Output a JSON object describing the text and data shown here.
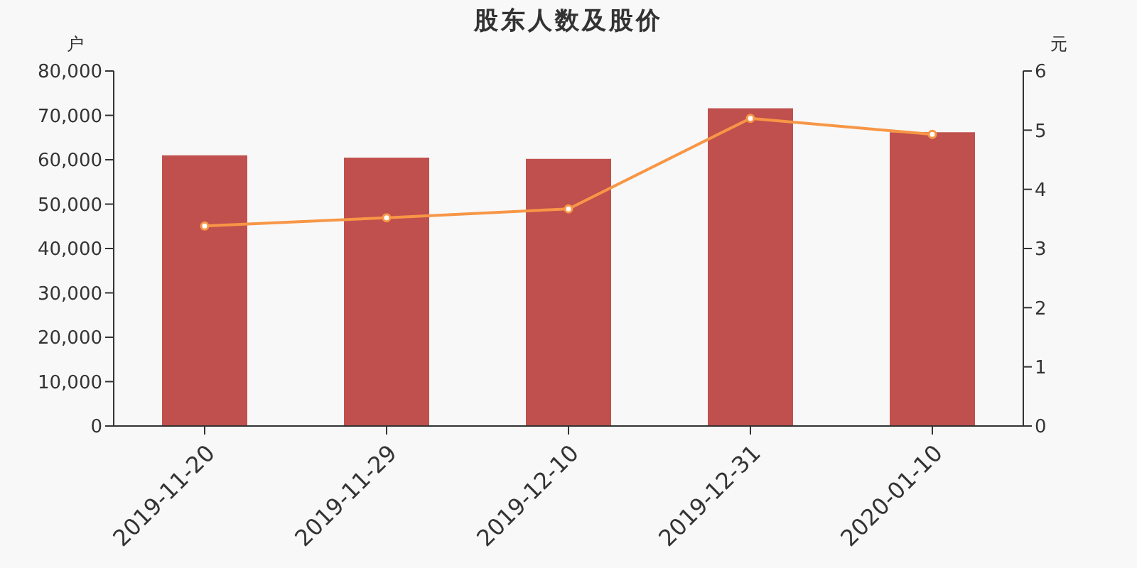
{
  "chart_data": {
    "type": "bar",
    "title": "股东人数及股价",
    "ylabel": "户",
    "y2label": "元",
    "categories": [
      "2019-11-20",
      "2019-11-29",
      "2019-12-10",
      "2019-12-31",
      "2020-01-10"
    ],
    "series": [
      {
        "color": "#c0504d",
        "values": [
          61000,
          60500,
          60200,
          71600,
          66200
        ]
      },
      {
        "type": "line",
        "axis": "y2",
        "color": "#f79646",
        "values": [
          3.38,
          3.52,
          3.67,
          5.2,
          4.93
        ]
      }
    ],
    "ylim": [
      0,
      80000
    ],
    "yticks": [
      {
        "value": 0,
        "label": "0"
      },
      {
        "value": 10000,
        "label": "10,000"
      },
      {
        "value": 20000,
        "label": "20,000"
      },
      {
        "value": 30000,
        "label": "30,000"
      },
      {
        "value": 40000,
        "label": "40,000"
      },
      {
        "value": 50000,
        "label": "50,000"
      },
      {
        "value": 60000,
        "label": "60,000"
      },
      {
        "value": 70000,
        "label": "70,000"
      },
      {
        "value": 80000,
        "label": "80,000"
      }
    ],
    "y2lim": [
      0,
      6
    ],
    "y2ticks": [
      0,
      1,
      2,
      3,
      4,
      5,
      6
    ],
    "grid": false,
    "legend": false,
    "marker": "circle",
    "line_style": "solid"
  }
}
